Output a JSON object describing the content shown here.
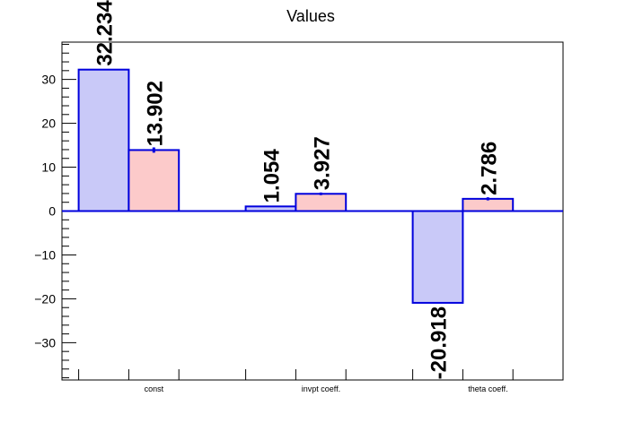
{
  "chart_data": {
    "type": "bar",
    "title": "Values",
    "xlabel": "",
    "ylabel": "",
    "categories": [
      "const",
      "invpt coeff.",
      "theta coeff."
    ],
    "series": [
      {
        "values": [
          32.234,
          1.054,
          -20.918
        ],
        "labels": [
          "32.234",
          "1.054",
          "-20.918"
        ],
        "color": "#c9c9f8",
        "edge": "#0000dd",
        "errors": [
          0,
          0,
          0
        ]
      },
      {
        "values": [
          13.902,
          3.927,
          2.786
        ],
        "labels": [
          "13.902",
          "3.927",
          "2.786"
        ],
        "color": "#fccaca",
        "edge": "#0000dd",
        "errors": [
          0.6,
          0.3,
          0.35
        ]
      }
    ],
    "yticks": [
      -30,
      -20,
      -10,
      0,
      10,
      20,
      30
    ],
    "ytick_labels": [
      "−30",
      "−20",
      "−10",
      "0",
      "10",
      "20",
      "30"
    ],
    "ylim": [
      -38.5,
      38.5
    ],
    "grid": false,
    "legend": "none"
  }
}
